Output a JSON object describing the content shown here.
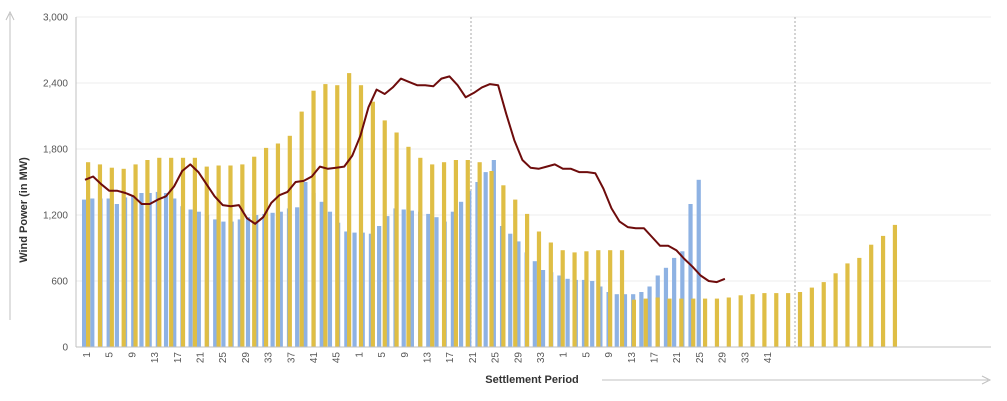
{
  "chart_data": {
    "type": "bar",
    "title": "",
    "xlabel": "Settlement Period",
    "ylabel": "Wind Power (in MW)",
    "ylim": [
      0,
      3000
    ],
    "y_ticks": [
      "0",
      "600",
      "1,200",
      "1,800",
      "2,400",
      "3,000"
    ],
    "x_tick_labels": [
      "1",
      "5",
      "9",
      "13",
      "17",
      "21",
      "25",
      "29",
      "33",
      "37",
      "41",
      "45",
      "1",
      "5",
      "9",
      "13",
      "17",
      "21",
      "25",
      "29",
      "33",
      "1",
      "5",
      "9",
      "13",
      "17",
      "21",
      "25",
      "29",
      "33",
      "41"
    ],
    "grid": true,
    "legend": "none",
    "colors": {
      "blue": "#8eb2e3",
      "gold": "#dfbe45",
      "line": "#6e0c0c",
      "axis": "#c0c0c0",
      "grid": "#eeeeee",
      "divider": "#aaaaaa"
    },
    "series": [
      {
        "kind": "bar",
        "color": "#8eb2e3",
        "values": [
          1340,
          1350,
          1350,
          1350,
          1300,
          1360,
          1380,
          1400,
          1400,
          1410,
          1400,
          1350,
          1280,
          1250,
          1230,
          1200,
          1160,
          1140,
          1140,
          1160,
          1180,
          1200,
          1210,
          1220,
          1230,
          1260,
          1270,
          1500,
          1400,
          1320,
          1230,
          1130,
          1050,
          1040,
          1040,
          1030,
          1100,
          1190,
          1260,
          1250,
          1240,
          1230,
          1210,
          1180,
          1140,
          1230,
          1320,
          1420,
          1500,
          1590,
          1700,
          1100,
          1030,
          960,
          860,
          780,
          700,
          680,
          650,
          620,
          610,
          610,
          600,
          550,
          500,
          480,
          480,
          480,
          500,
          550,
          650,
          720,
          810,
          870,
          1300,
          1520
        ]
      },
      {
        "kind": "bar",
        "color": "#dfbe45",
        "values": [
          1680,
          1660,
          1630,
          1620,
          1660,
          1700,
          1720,
          1720,
          1720,
          1720,
          1640,
          1650,
          1650,
          1660,
          1730,
          1810,
          1850,
          1920,
          2140,
          2330,
          2390,
          2380,
          2490,
          2380,
          2230,
          2060,
          1950,
          1820,
          1720,
          1660,
          1680,
          1700,
          1700,
          1680,
          1600,
          1470,
          1340,
          1210,
          1050,
          950,
          880,
          860,
          870,
          880,
          880,
          880,
          430,
          440,
          450,
          440,
          440,
          440,
          440,
          440,
          450,
          470,
          480,
          490,
          490,
          490,
          500,
          540,
          590,
          670,
          760,
          810,
          930,
          1010,
          1110
        ]
      },
      {
        "kind": "line",
        "color": "#6e0c0c",
        "values": [
          1520,
          1550,
          1480,
          1420,
          1420,
          1400,
          1370,
          1300,
          1300,
          1340,
          1370,
          1460,
          1600,
          1660,
          1590,
          1480,
          1370,
          1290,
          1280,
          1290,
          1170,
          1120,
          1180,
          1310,
          1380,
          1410,
          1500,
          1510,
          1550,
          1640,
          1620,
          1630,
          1640,
          1740,
          1920,
          2180,
          2340,
          2300,
          2360,
          2440,
          2410,
          2380,
          2380,
          2370,
          2440,
          2460,
          2380,
          2270,
          2310,
          2360,
          2390,
          2380,
          2120,
          1880,
          1700,
          1630,
          1620,
          1640,
          1660,
          1620,
          1620,
          1590,
          1590,
          1580,
          1440,
          1260,
          1140,
          1090,
          1080,
          1080,
          1000,
          920,
          920,
          880,
          800,
          730,
          650,
          600,
          590,
          620
        ]
      }
    ]
  }
}
